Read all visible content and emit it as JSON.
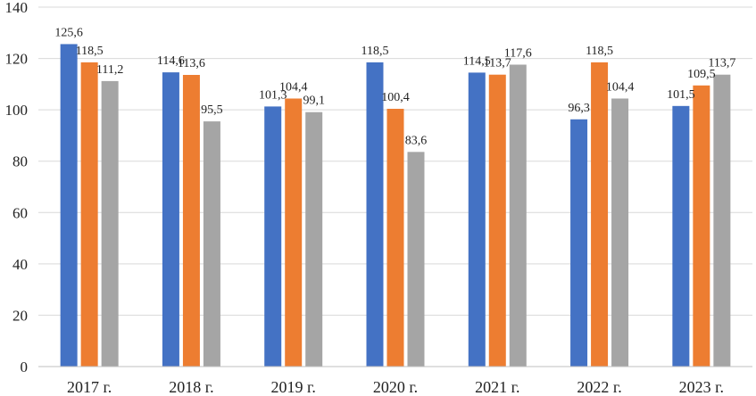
{
  "chart_data": {
    "type": "bar",
    "title": "",
    "xlabel": "",
    "ylabel": "",
    "ylim": [
      0,
      140
    ],
    "yticks": [
      0,
      20,
      40,
      60,
      80,
      100,
      120,
      140
    ],
    "grid": true,
    "legend": "none",
    "categories": [
      "2017 г.",
      "2018 г.",
      "2019 г.",
      "2020 г.",
      "2021 г.",
      "2022 г.",
      "2023 г."
    ],
    "series": [
      {
        "name": "Series 1",
        "color": "#4472c4",
        "values": [
          125.6,
          114.6,
          101.3,
          118.5,
          114.5,
          96.3,
          101.5
        ],
        "labels": [
          "125,6",
          "114,6",
          "101,3",
          "118,5",
          "114,5",
          "96,3",
          "101,5"
        ]
      },
      {
        "name": "Series 2",
        "color": "#ed7d31",
        "values": [
          118.5,
          113.6,
          104.4,
          100.4,
          113.7,
          118.5,
          109.5
        ],
        "labels": [
          "118,5",
          "113,6",
          "104,4",
          "100,4",
          "113,7",
          "118,5",
          "109,5"
        ]
      },
      {
        "name": "Series 3",
        "color": "#a5a5a5",
        "values": [
          111.2,
          95.5,
          99.1,
          83.6,
          117.6,
          104.4,
          113.7
        ],
        "labels": [
          "111,2",
          "95,5",
          "99,1",
          "83,6",
          "117,6",
          "104,4",
          "113,7"
        ]
      }
    ]
  }
}
